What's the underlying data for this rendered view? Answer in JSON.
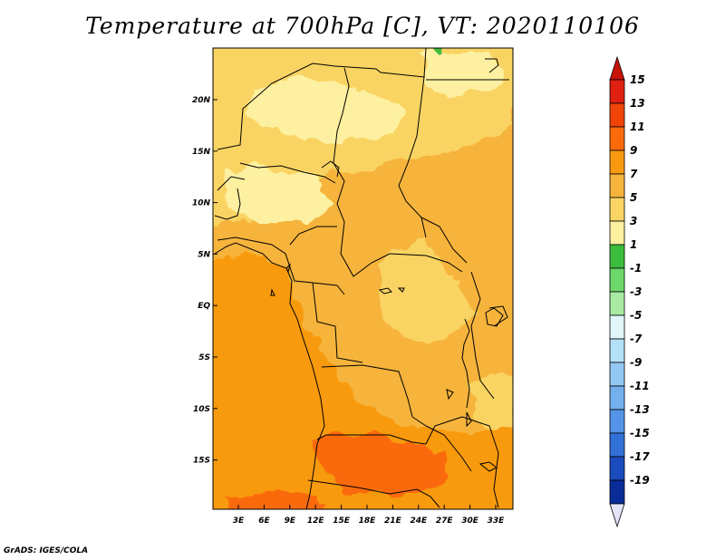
{
  "title": "Temperature at 700hPa [C], VT: 2020110106",
  "footer": "GrADS: IGES/COLA",
  "map": {
    "region": "Central and Southern Africa",
    "lon_range": [
      0,
      35
    ],
    "lat_range": [
      -20,
      25
    ],
    "x_ticks": [
      "3E",
      "6E",
      "9E",
      "12E",
      "15E",
      "18E",
      "21E",
      "24E",
      "27E",
      "30E",
      "33E"
    ],
    "y_ticks": [
      "20N",
      "15N",
      "10N",
      "5N",
      "EQ",
      "5S",
      "10S",
      "15S"
    ]
  },
  "colorbar": {
    "labels": [
      "15",
      "13",
      "11",
      "9",
      "7",
      "5",
      "3",
      "1",
      "-1",
      "-3",
      "-5",
      "-7",
      "-9",
      "-11",
      "-13",
      "-15",
      "-17",
      "-19"
    ],
    "colors": [
      "#e02010",
      "#f04408",
      "#fa6a0a",
      "#f89a10",
      "#f6b43c",
      "#fad464",
      "#fdf0a0",
      "#3cbc3c",
      "#6cd86c",
      "#a8eaa4",
      "#e2f6fa",
      "#b4e0f8",
      "#94c8f4",
      "#74b0ee",
      "#5494e6",
      "#3272d8",
      "#1a4cbe",
      "#0a2c98",
      "#06106a"
    ],
    "top_arrow_color": "#c81408",
    "bottom_arrow_color": "#e4e4f8"
  }
}
